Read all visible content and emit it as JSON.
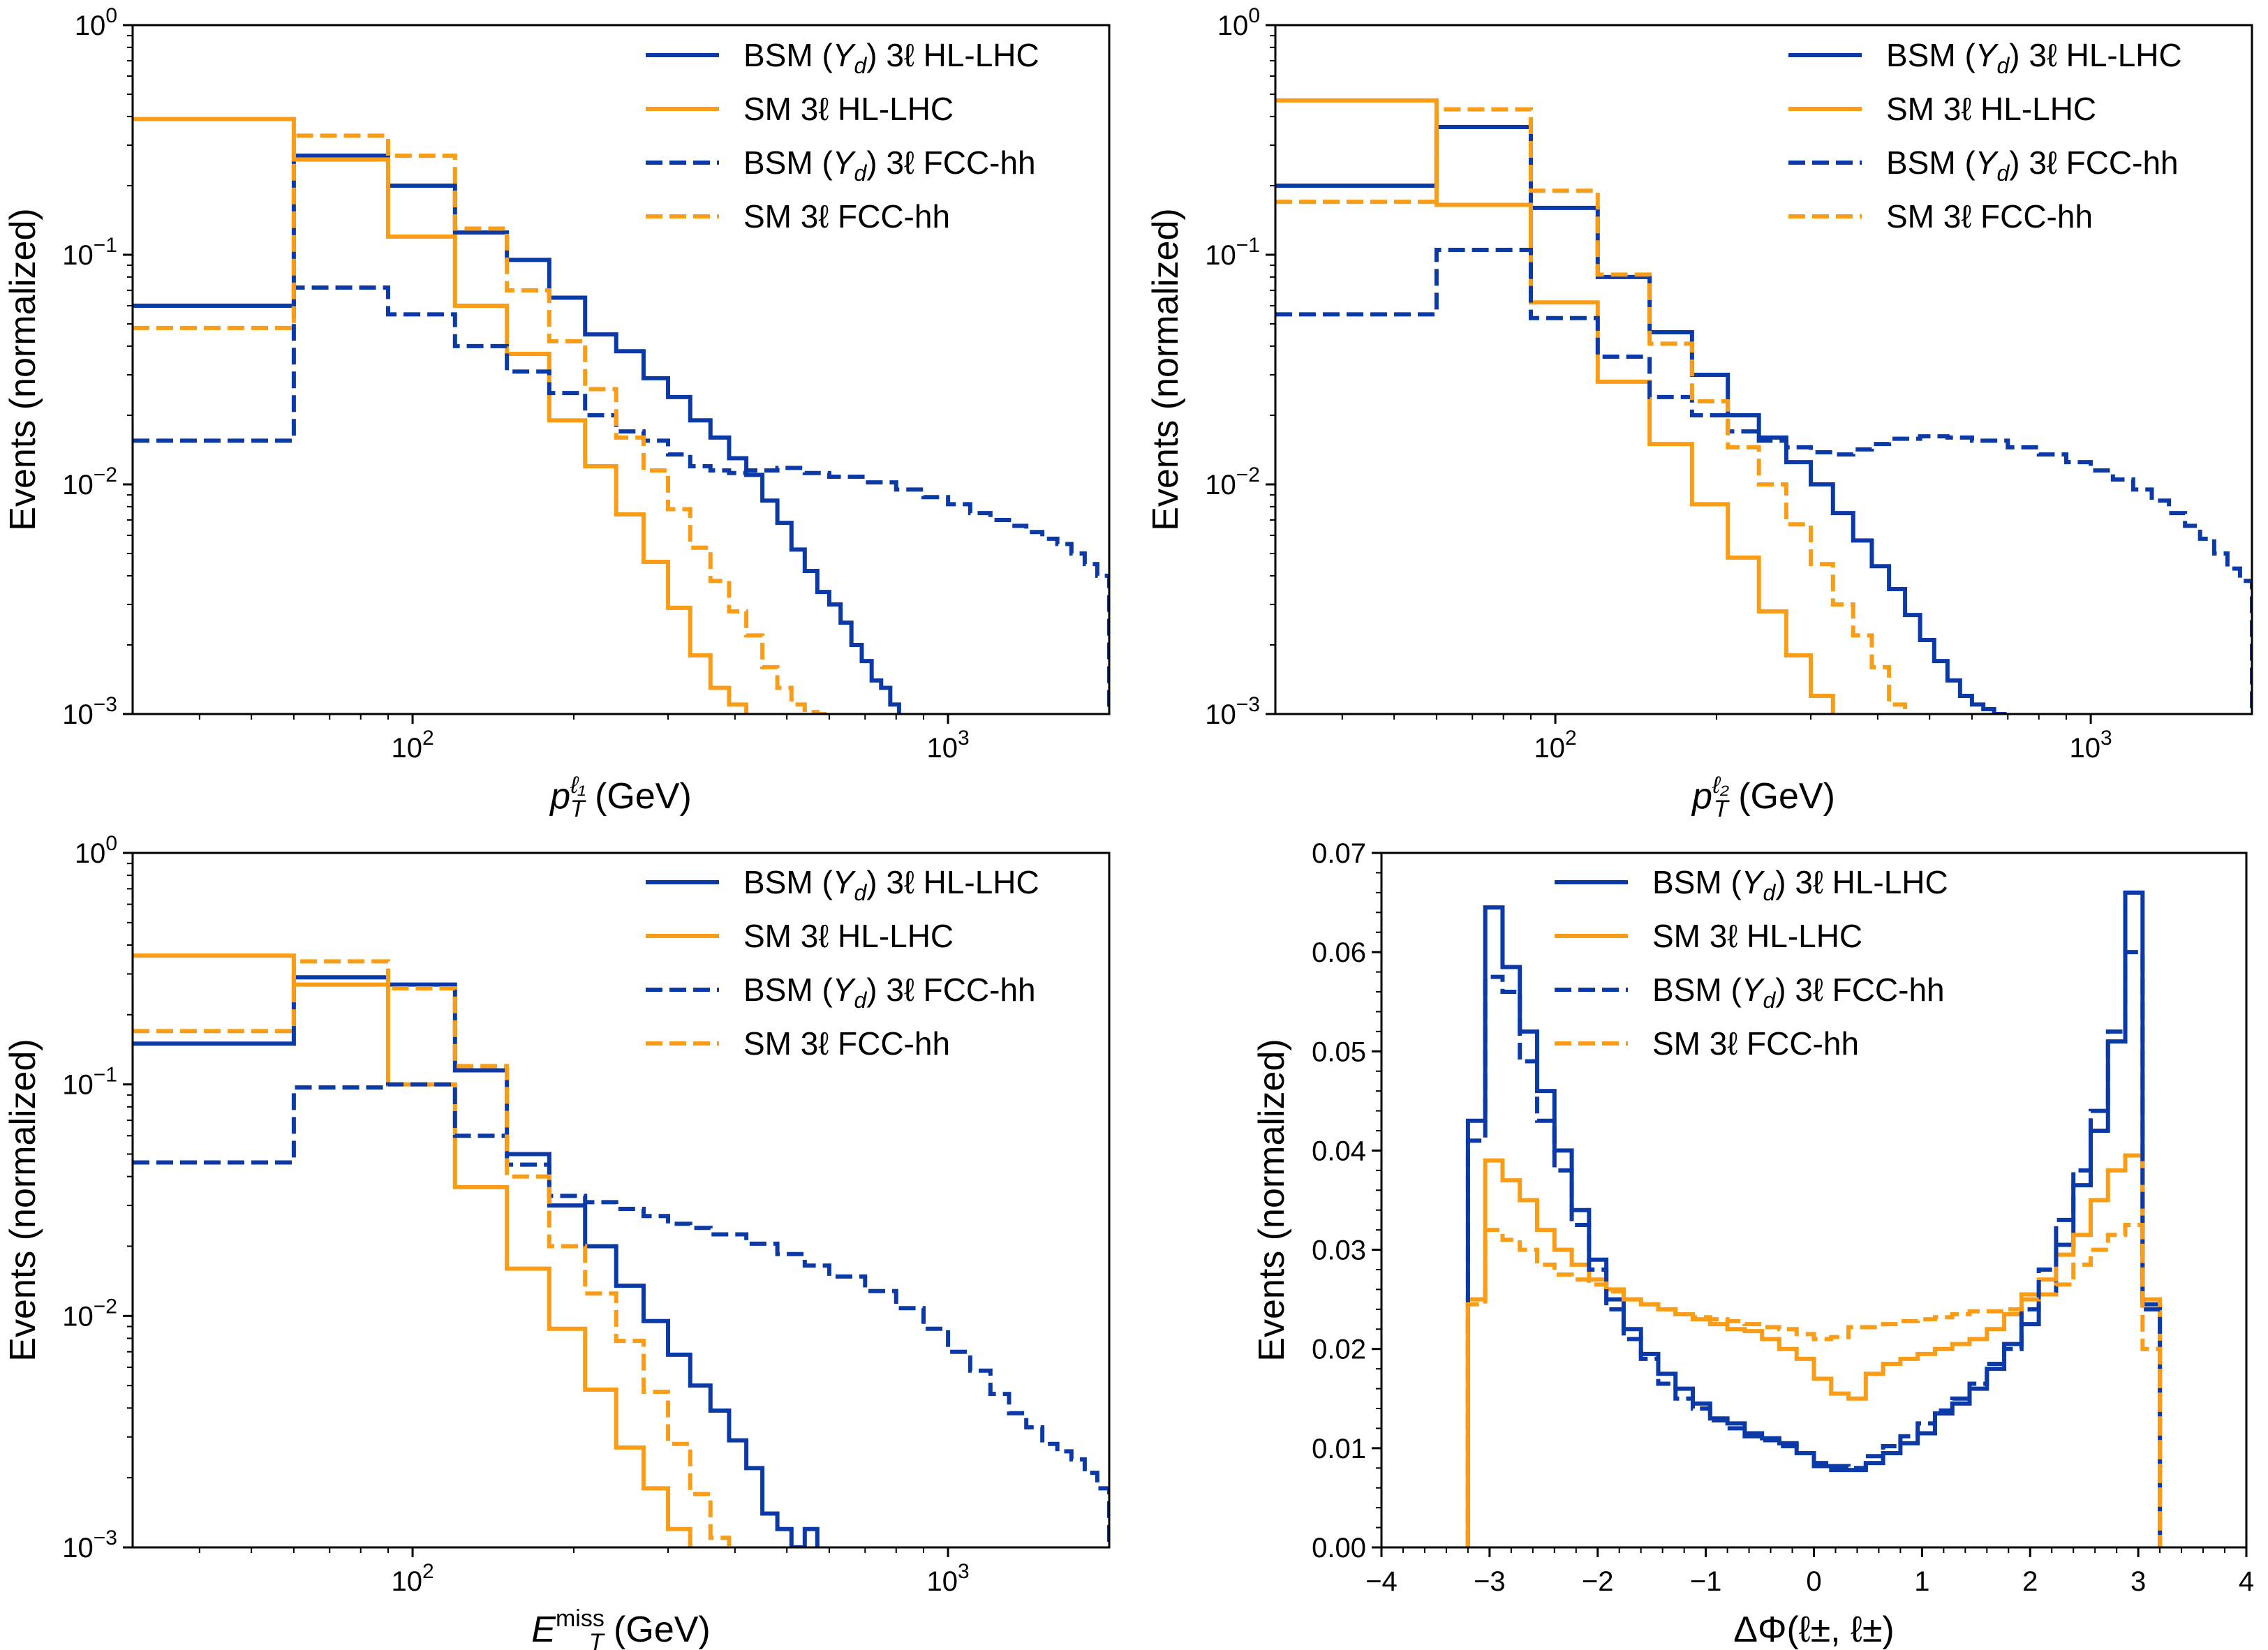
{
  "colors": {
    "bsm": "#0b39a8",
    "sm": "#f99c16"
  },
  "legend": [
    "BSM (Y_d) 3ℓ HL-LHC",
    "SM 3ℓ HL-LHC",
    "BSM (Y_d) 3ℓ FCC-hh",
    "SM 3ℓ FCC-hh"
  ],
  "chart_data": [
    {
      "type": "step-histogram",
      "xscale": "log",
      "yscale": "log",
      "title": "",
      "xlabel": "p_T^{ℓ1} (GeV)",
      "ylabel": "Events (normalized)",
      "xlim": [
        30,
        2000
      ],
      "ylim": [
        0.001,
        1
      ],
      "xticks": [
        {
          "v": 100,
          "label": "10^2"
        },
        {
          "v": 1000,
          "label": "10^3"
        }
      ],
      "yticks": [
        {
          "v": 0.001,
          "label": "10^-3"
        },
        {
          "v": 0.01,
          "label": "10^-2"
        },
        {
          "v": 0.1,
          "label": "10^-1"
        },
        {
          "v": 1,
          "label": "10^0"
        }
      ],
      "legend_position": "top-right",
      "series": [
        {
          "name": "BSM (Y_d) 3ℓ HL-LHC",
          "style": "solid",
          "color": "bsm",
          "edges": [
            30,
            60,
            90,
            120,
            150,
            180,
            210,
            240,
            270,
            300,
            330,
            360,
            390,
            420,
            450,
            480,
            510,
            540,
            570,
            600,
            630,
            660,
            690,
            720,
            750,
            780,
            810
          ],
          "values": [
            0.06,
            0.27,
            0.2,
            0.125,
            0.095,
            0.065,
            0.045,
            0.038,
            0.029,
            0.024,
            0.019,
            0.016,
            0.013,
            0.011,
            0.0085,
            0.0068,
            0.0052,
            0.0042,
            0.0034,
            0.003,
            0.0025,
            0.002,
            0.0017,
            0.0014,
            0.0013,
            0.0011
          ]
        },
        {
          "name": "SM 3ℓ HL-LHC",
          "style": "solid",
          "color": "sm",
          "edges": [
            30,
            60,
            90,
            120,
            150,
            180,
            210,
            240,
            270,
            300,
            330,
            360,
            390,
            420
          ],
          "values": [
            0.39,
            0.26,
            0.12,
            0.06,
            0.037,
            0.019,
            0.012,
            0.0074,
            0.0046,
            0.0029,
            0.0018,
            0.0013,
            0.0011
          ]
        },
        {
          "name": "BSM (Y_d) 3ℓ FCC-hh",
          "style": "dashed",
          "color": "bsm",
          "edges": [
            30,
            60,
            90,
            120,
            150,
            180,
            210,
            240,
            270,
            300,
            330,
            360,
            390,
            420,
            480,
            540,
            600,
            700,
            800,
            900,
            1000,
            1100,
            1200,
            1300,
            1400,
            1500,
            1600,
            1700,
            1800,
            1900,
            2000
          ],
          "values": [
            0.0155,
            0.072,
            0.055,
            0.04,
            0.031,
            0.025,
            0.02,
            0.017,
            0.0155,
            0.0135,
            0.012,
            0.0115,
            0.0112,
            0.0115,
            0.0118,
            0.0112,
            0.0108,
            0.0102,
            0.0095,
            0.0088,
            0.0082,
            0.0075,
            0.007,
            0.0066,
            0.0062,
            0.0058,
            0.0055,
            0.005,
            0.0045,
            0.004
          ]
        },
        {
          "name": "SM 3ℓ FCC-hh",
          "style": "dashed",
          "color": "sm",
          "edges": [
            30,
            60,
            90,
            120,
            150,
            180,
            210,
            240,
            270,
            300,
            330,
            360,
            390,
            420,
            450,
            480,
            510,
            540,
            570,
            600
          ],
          "values": [
            0.048,
            0.33,
            0.27,
            0.13,
            0.07,
            0.042,
            0.026,
            0.016,
            0.0115,
            0.0078,
            0.0053,
            0.0038,
            0.0028,
            0.0022,
            0.0016,
            0.0013,
            0.0011,
            0.00102,
            0.001
          ]
        }
      ]
    },
    {
      "type": "step-histogram",
      "xscale": "log",
      "yscale": "log",
      "title": "",
      "xlabel": "p_T^{ℓ2} (GeV)",
      "ylabel": "Events (normalized)",
      "xlim": [
        30,
        2000
      ],
      "ylim": [
        0.001,
        1
      ],
      "xticks": [
        {
          "v": 100,
          "label": "10^2"
        },
        {
          "v": 1000,
          "label": "10^3"
        }
      ],
      "yticks": [
        {
          "v": 0.001,
          "label": "10^-3"
        },
        {
          "v": 0.01,
          "label": "10^-2"
        },
        {
          "v": 0.1,
          "label": "10^-1"
        },
        {
          "v": 1,
          "label": "10^0"
        }
      ],
      "legend_position": "top-right",
      "series": [
        {
          "name": "BSM (Y_d) 3ℓ HL-LHC",
          "style": "solid",
          "color": "bsm",
          "edges": [
            30,
            60,
            90,
            120,
            150,
            180,
            210,
            240,
            270,
            300,
            330,
            360,
            390,
            420,
            450,
            480,
            510,
            540,
            570,
            600,
            630,
            660,
            690
          ],
          "values": [
            0.2,
            0.36,
            0.16,
            0.08,
            0.046,
            0.03,
            0.02,
            0.016,
            0.0125,
            0.01,
            0.0075,
            0.0057,
            0.0044,
            0.0035,
            0.0027,
            0.0021,
            0.0017,
            0.0014,
            0.0012,
            0.0011,
            0.00105,
            0.001
          ]
        },
        {
          "name": "SM 3ℓ HL-LHC",
          "style": "solid",
          "color": "sm",
          "edges": [
            30,
            60,
            90,
            120,
            150,
            180,
            210,
            240,
            270,
            300,
            330
          ],
          "values": [
            0.47,
            0.165,
            0.062,
            0.028,
            0.015,
            0.0082,
            0.0048,
            0.0028,
            0.0018,
            0.0012
          ]
        },
        {
          "name": "BSM (Y_d) 3ℓ FCC-hh",
          "style": "dashed",
          "color": "bsm",
          "edges": [
            30,
            60,
            90,
            120,
            150,
            180,
            210,
            240,
            270,
            300,
            330,
            360,
            390,
            420,
            480,
            540,
            600,
            700,
            800,
            900,
            1000,
            1100,
            1200,
            1300,
            1400,
            1500,
            1600,
            1700,
            1800,
            1900,
            2000
          ],
          "values": [
            0.055,
            0.105,
            0.053,
            0.036,
            0.024,
            0.02,
            0.017,
            0.0155,
            0.0145,
            0.0138,
            0.0135,
            0.0142,
            0.015,
            0.0158,
            0.0162,
            0.016,
            0.0155,
            0.0145,
            0.0135,
            0.0125,
            0.0115,
            0.0105,
            0.0095,
            0.0085,
            0.0075,
            0.0066,
            0.0058,
            0.005,
            0.0043,
            0.0038
          ]
        },
        {
          "name": "SM 3ℓ FCC-hh",
          "style": "dashed",
          "color": "sm",
          "edges": [
            30,
            60,
            90,
            120,
            150,
            180,
            210,
            240,
            270,
            300,
            330,
            360,
            390,
            420,
            450
          ],
          "values": [
            0.17,
            0.43,
            0.19,
            0.082,
            0.041,
            0.023,
            0.0145,
            0.01,
            0.0067,
            0.0045,
            0.003,
            0.0022,
            0.0016,
            0.0011
          ]
        }
      ]
    },
    {
      "type": "step-histogram",
      "xscale": "log",
      "yscale": "log",
      "title": "",
      "xlabel": "E_T^miss (GeV)",
      "ylabel": "Events (normalized)",
      "xlim": [
        30,
        2000
      ],
      "ylim": [
        0.001,
        1
      ],
      "xticks": [
        {
          "v": 100,
          "label": "10^2"
        },
        {
          "v": 1000,
          "label": "10^3"
        }
      ],
      "yticks": [
        {
          "v": 0.001,
          "label": "10^-3"
        },
        {
          "v": 0.01,
          "label": "10^-2"
        },
        {
          "v": 0.1,
          "label": "10^-1"
        },
        {
          "v": 1,
          "label": "10^0"
        }
      ],
      "legend_position": "top-right",
      "series": [
        {
          "name": "BSM (Y_d) 3ℓ HL-LHC",
          "style": "solid",
          "color": "bsm",
          "edges": [
            30,
            60,
            90,
            120,
            150,
            180,
            210,
            240,
            270,
            300,
            330,
            360,
            390,
            420,
            450,
            480,
            510,
            540,
            570
          ],
          "values": [
            0.15,
            0.29,
            0.27,
            0.115,
            0.05,
            0.03,
            0.02,
            0.0135,
            0.0095,
            0.0068,
            0.005,
            0.0039,
            0.0029,
            0.0022,
            0.0014,
            0.0012,
            0.001,
            0.0012
          ]
        },
        {
          "name": "SM 3ℓ HL-LHC",
          "style": "solid",
          "color": "sm",
          "edges": [
            30,
            60,
            90,
            120,
            150,
            180,
            210,
            240,
            270,
            300,
            330
          ],
          "values": [
            0.36,
            0.27,
            0.1,
            0.036,
            0.016,
            0.0088,
            0.0048,
            0.0027,
            0.0018,
            0.0012
          ]
        },
        {
          "name": "BSM (Y_d) 3ℓ FCC-hh",
          "style": "dashed",
          "color": "bsm",
          "edges": [
            30,
            60,
            90,
            120,
            150,
            180,
            210,
            240,
            270,
            300,
            330,
            360,
            420,
            480,
            540,
            600,
            700,
            800,
            900,
            1000,
            1100,
            1200,
            1300,
            1400,
            1500,
            1600,
            1700,
            1800,
            1900,
            2000
          ],
          "values": [
            0.046,
            0.097,
            0.1,
            0.06,
            0.045,
            0.033,
            0.031,
            0.029,
            0.027,
            0.025,
            0.024,
            0.0225,
            0.0205,
            0.0185,
            0.0165,
            0.0148,
            0.0128,
            0.0108,
            0.0088,
            0.007,
            0.0058,
            0.0046,
            0.0038,
            0.0033,
            0.0028,
            0.0026,
            0.0024,
            0.0021,
            0.0018
          ]
        },
        {
          "name": "SM 3ℓ FCC-hh",
          "style": "dashed",
          "color": "sm",
          "edges": [
            30,
            60,
            90,
            120,
            150,
            180,
            210,
            240,
            270,
            300,
            330,
            360,
            390
          ],
          "values": [
            0.17,
            0.34,
            0.26,
            0.12,
            0.04,
            0.02,
            0.0125,
            0.0078,
            0.0047,
            0.0028,
            0.0017,
            0.0011
          ]
        }
      ]
    },
    {
      "type": "step-histogram",
      "xscale": "linear",
      "yscale": "linear",
      "title": "",
      "xlabel": "ΔΦ(ℓ±, ℓ±)",
      "ylabel": "Events (normalized)",
      "xlim": [
        -4,
        4
      ],
      "ylim": [
        0,
        0.07
      ],
      "xticks": [
        {
          "v": -4,
          "label": "−4"
        },
        {
          "v": -3,
          "label": "−3"
        },
        {
          "v": -2,
          "label": "−2"
        },
        {
          "v": -1,
          "label": "−1"
        },
        {
          "v": 0,
          "label": "0"
        },
        {
          "v": 1,
          "label": "1"
        },
        {
          "v": 2,
          "label": "2"
        },
        {
          "v": 3,
          "label": "3"
        },
        {
          "v": 4,
          "label": "4"
        }
      ],
      "yticks": [
        {
          "v": 0,
          "label": "0.00"
        },
        {
          "v": 0.01,
          "label": "0.01"
        },
        {
          "v": 0.02,
          "label": "0.02"
        },
        {
          "v": 0.03,
          "label": "0.03"
        },
        {
          "v": 0.04,
          "label": "0.04"
        },
        {
          "v": 0.05,
          "label": "0.05"
        },
        {
          "v": 0.06,
          "label": "0.06"
        },
        {
          "v": 0.07,
          "label": "0.07"
        }
      ],
      "legend_position": "top-center",
      "bin_edges": {
        "start": -3.2,
        "step": 0.16,
        "count": 40
      },
      "series": [
        {
          "name": "BSM (Y_d) 3ℓ HL-LHC",
          "style": "solid",
          "color": "bsm",
          "values": [
            0.043,
            0.0645,
            0.0585,
            0.052,
            0.046,
            0.04,
            0.034,
            0.029,
            0.025,
            0.022,
            0.0195,
            0.0175,
            0.016,
            0.0145,
            0.013,
            0.0125,
            0.0115,
            0.011,
            0.0105,
            0.0095,
            0.0082,
            0.0078,
            0.0078,
            0.0085,
            0.0095,
            0.0105,
            0.0115,
            0.0135,
            0.0145,
            0.016,
            0.018,
            0.0205,
            0.0225,
            0.0255,
            0.0305,
            0.0365,
            0.042,
            0.051,
            0.066,
            0.0245
          ]
        },
        {
          "name": "SM 3ℓ HL-LHC",
          "style": "solid",
          "color": "sm",
          "values": [
            0.025,
            0.039,
            0.037,
            0.035,
            0.032,
            0.03,
            0.0285,
            0.027,
            0.026,
            0.025,
            0.0245,
            0.024,
            0.0235,
            0.023,
            0.0225,
            0.022,
            0.0218,
            0.021,
            0.02,
            0.019,
            0.017,
            0.0155,
            0.015,
            0.0175,
            0.0185,
            0.019,
            0.0195,
            0.02,
            0.0205,
            0.021,
            0.022,
            0.0235,
            0.0255,
            0.027,
            0.0295,
            0.0315,
            0.035,
            0.038,
            0.0395,
            0.025
          ]
        },
        {
          "name": "BSM (Y_d) 3ℓ FCC-hh",
          "style": "dashed",
          "color": "bsm",
          "values": [
            0.041,
            0.0575,
            0.056,
            0.049,
            0.043,
            0.038,
            0.0325,
            0.028,
            0.024,
            0.021,
            0.019,
            0.0165,
            0.015,
            0.014,
            0.0128,
            0.012,
            0.0112,
            0.0108,
            0.0102,
            0.0095,
            0.0085,
            0.0082,
            0.008,
            0.0092,
            0.0102,
            0.0112,
            0.0125,
            0.0138,
            0.015,
            0.0165,
            0.0185,
            0.02,
            0.024,
            0.028,
            0.033,
            0.038,
            0.044,
            0.052,
            0.06,
            0.024
          ]
        },
        {
          "name": "SM 3ℓ FCC-hh",
          "style": "dashed",
          "color": "sm",
          "values": [
            0.0245,
            0.032,
            0.031,
            0.03,
            0.0285,
            0.0275,
            0.027,
            0.0265,
            0.0258,
            0.025,
            0.0245,
            0.024,
            0.0235,
            0.0232,
            0.023,
            0.0228,
            0.0225,
            0.0222,
            0.022,
            0.0215,
            0.021,
            0.0212,
            0.0222,
            0.0222,
            0.0225,
            0.0228,
            0.023,
            0.0232,
            0.0235,
            0.0238,
            0.0238,
            0.024,
            0.025,
            0.0255,
            0.0265,
            0.0285,
            0.03,
            0.0315,
            0.0325,
            0.02
          ]
        }
      ]
    }
  ]
}
